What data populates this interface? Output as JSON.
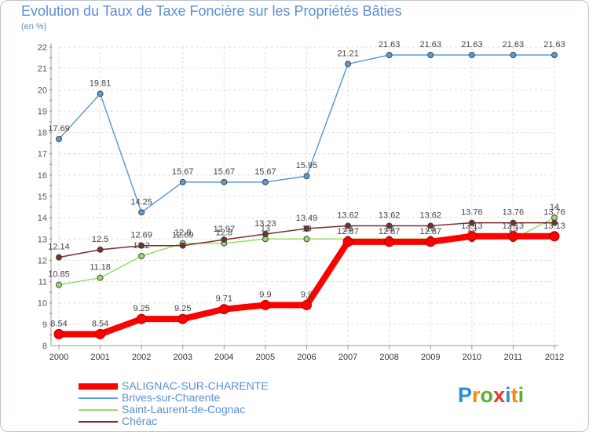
{
  "header": {
    "title": "Evolution du Taux de Taxe Foncière sur les Propriétés Bâties",
    "unit": "(en %)"
  },
  "chart_data": {
    "type": "line",
    "title": "Evolution du Taux de Taxe Foncière sur les Propriétés Bâties",
    "ylabel": "(en %)",
    "x": [
      2000,
      2001,
      2002,
      2003,
      2004,
      2005,
      2006,
      2007,
      2008,
      2009,
      2010,
      2011,
      2012
    ],
    "ylim": [
      8,
      22
    ],
    "yticks": [
      8,
      9,
      10,
      11,
      12,
      13,
      14,
      15,
      16,
      17,
      18,
      19,
      20,
      21,
      22
    ],
    "grid": true,
    "series": [
      {
        "name": "SALIGNAC-SUR-CHARENTE",
        "color": "#ff0000",
        "values": [
          8.54,
          8.54,
          9.25,
          9.25,
          9.71,
          9.9,
          9.9,
          12.87,
          12.87,
          12.87,
          13.13,
          13.13,
          13.13
        ]
      },
      {
        "name": "Brives-sur-Charente",
        "color": "#5b9bd5",
        "values": [
          17.69,
          19.81,
          14.25,
          15.67,
          15.67,
          15.67,
          15.95,
          21.21,
          21.63,
          21.63,
          21.63,
          21.63,
          21.63
        ]
      },
      {
        "name": "Saint-Laurent-de-Cognac",
        "color": "#99dd66",
        "values": [
          10.85,
          11.18,
          12.2,
          12.8,
          12.8,
          13,
          13,
          13,
          13,
          13,
          13,
          13,
          14
        ]
      },
      {
        "name": "Chérac",
        "color": "#7a2e2e",
        "values": [
          12.14,
          12.5,
          12.69,
          12.69,
          12.97,
          13.23,
          13.49,
          13.62,
          13.62,
          13.62,
          13.76,
          13.76,
          13.76
        ]
      }
    ],
    "labels": [
      {
        "series": 0,
        "text": [
          "8.54",
          "8.54",
          "9.25",
          "9.25",
          "9.71",
          "9.9",
          "9.9",
          "12.87",
          "12.87",
          "12.87",
          "13.13",
          "13.13",
          "13.13"
        ]
      },
      {
        "series": 1,
        "text": [
          "17.69",
          "19.81",
          "14.25",
          "15.67",
          "15.67",
          "15.67",
          "15.95",
          "21.21",
          "21.63",
          "21.63",
          "21.63",
          "21.63",
          "21.63"
        ]
      },
      {
        "series": 2,
        "text": [
          "10.85",
          "11.18",
          "12.2",
          "12.8",
          "12.8",
          "13",
          "13",
          "13",
          "13",
          "13",
          "13",
          "13",
          "14"
        ]
      },
      {
        "series": 3,
        "text": [
          "12.14",
          "12.5",
          "12.69",
          "12.69",
          "12.97",
          "13.23",
          "13.49",
          "13.62",
          "13.62",
          "13.62",
          "13.76",
          "13.76",
          "13.76"
        ]
      }
    ]
  },
  "legend": {
    "items": [
      {
        "label": "SALIGNAC-SUR-CHARENTE",
        "color": "#ff0000"
      },
      {
        "label": "Brives-sur-Charente",
        "color": "#5b9bd5"
      },
      {
        "label": "Saint-Laurent-de-Cognac",
        "color": "#99dd66"
      },
      {
        "label": "Chérac",
        "color": "#7a2e2e"
      }
    ]
  },
  "logo": {
    "letters": [
      "P",
      "r",
      "o",
      "x",
      "i",
      "t",
      "i"
    ],
    "colors": [
      "#2a8fd6",
      "#ff8a00",
      "#5ab030",
      "#e33b2e",
      "#2a8fd6",
      "#ff8a00",
      "#5ab030"
    ]
  }
}
